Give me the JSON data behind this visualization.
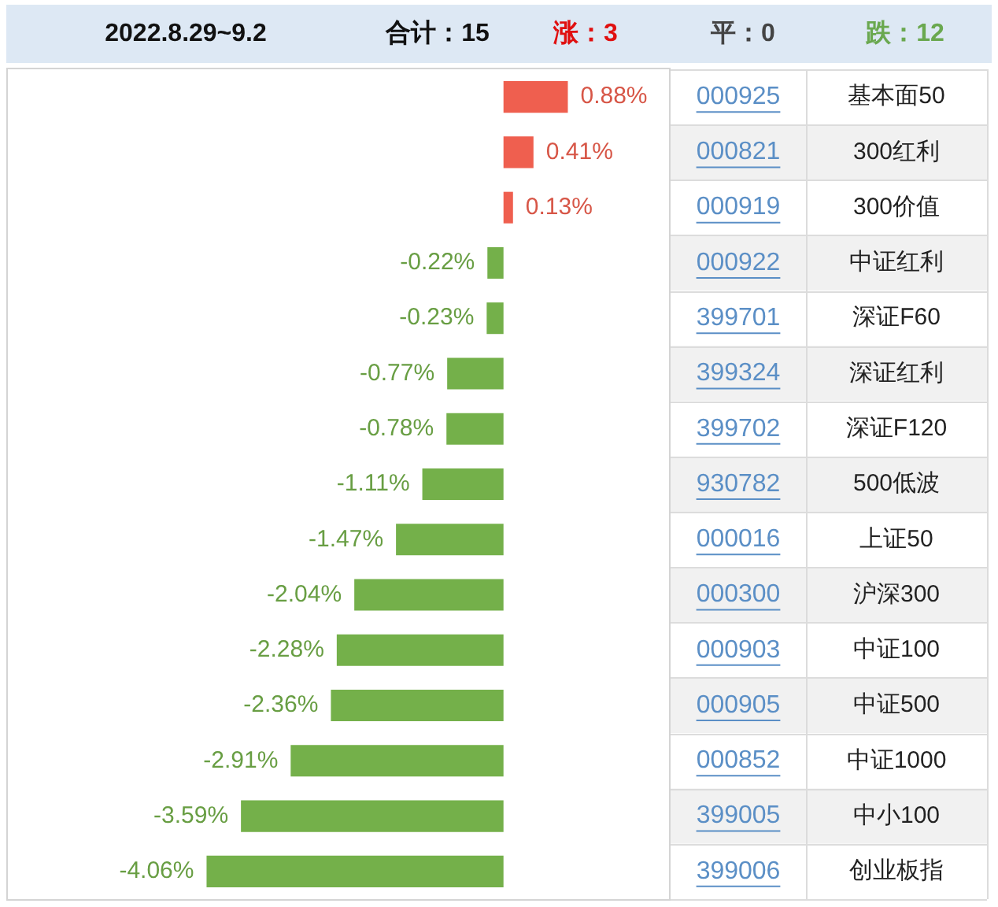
{
  "chart_data": {
    "type": "bar",
    "orientation": "horizontal",
    "title": "2022.8.29~9.2",
    "categories": [
      "基本面50",
      "300红利",
      "300价值",
      "中证红利",
      "深证F60",
      "深证红利",
      "深证F120",
      "500低波",
      "上证50",
      "沪深300",
      "中证100",
      "中证500",
      "中证1000",
      "中小100",
      "创业板指"
    ],
    "values": [
      0.88,
      0.41,
      0.13,
      -0.22,
      -0.23,
      -0.77,
      -0.78,
      -1.11,
      -1.47,
      -2.04,
      -2.28,
      -2.36,
      -2.91,
      -3.59,
      -4.06
    ],
    "colors": [
      "#ef5f4f",
      "#ef5f4f",
      "#ef5f4f",
      "#74b04a",
      "#74b04a",
      "#74b04a",
      "#74b04a",
      "#74b04a",
      "#74b04a",
      "#74b04a",
      "#74b04a",
      "#74b04a",
      "#74b04a",
      "#74b04a",
      "#74b04a"
    ],
    "value_labels": [
      "0.88%",
      "0.41%",
      "0.13%",
      "-0.22%",
      "-0.23%",
      "-0.77%",
      "-0.78%",
      "-1.11%",
      "-1.47%",
      "-2.04%",
      "-2.28%",
      "-2.36%",
      "-2.91%",
      "-3.59%",
      "-4.06%"
    ],
    "tick_labels": "y",
    "annotations": [
      "合计：15",
      "涨：3",
      "平：0",
      "跌：12",
      "000925",
      "000821",
      "000919",
      "000922",
      "399701",
      "399324",
      "399702",
      "930782",
      "000016",
      "000300",
      "000903",
      "000905",
      "000852",
      "399005",
      "399006"
    ]
  }
}
